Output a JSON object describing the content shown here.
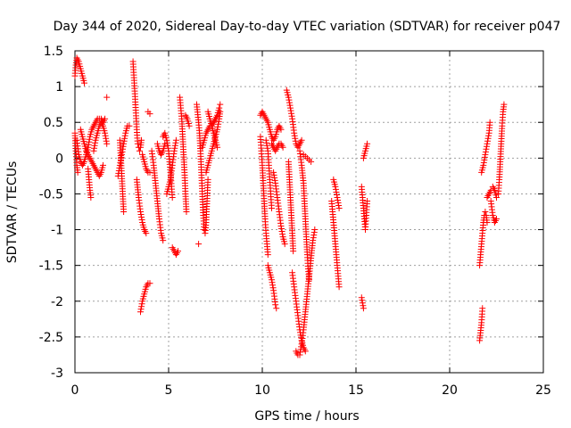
{
  "chart_data": {
    "type": "scatter",
    "title": "Day 344 of 2020, Sidereal Day-to-day VTEC variation (SDTVAR) for receiver p047",
    "xlabel": "GPS time / hours",
    "ylabel": "SDTVAR / TECUs",
    "xlim": [
      0,
      25
    ],
    "ylim": [
      -3,
      1.5
    ],
    "x_ticks": [
      0,
      5,
      10,
      15,
      20,
      25
    ],
    "x_tick_labels": [
      "0",
      "5",
      "10",
      "15",
      "20",
      "25"
    ],
    "y_ticks": [
      1.5,
      1,
      0.5,
      0,
      -0.5,
      -1,
      -1.5,
      -2,
      -2.5,
      -3
    ],
    "y_tick_labels": [
      "1.5",
      "1",
      "0.5",
      "0",
      "-0.5",
      "-1",
      "-1.5",
      "-2",
      "-2.5",
      "-3"
    ],
    "grid": true,
    "marker": "+",
    "marker_color": "#ff0000",
    "segments": [
      [
        [
          0.0,
          1.15
        ],
        [
          0.05,
          1.3
        ],
        [
          0.1,
          1.4
        ],
        [
          0.2,
          1.35
        ],
        [
          0.3,
          1.25
        ],
        [
          0.4,
          1.15
        ],
        [
          0.5,
          1.05
        ]
      ],
      [
        [
          0.0,
          0.35
        ],
        [
          0.05,
          0.1
        ],
        [
          0.1,
          -0.1
        ],
        [
          0.15,
          -0.2
        ]
      ],
      [
        [
          0.1,
          0.25
        ],
        [
          0.2,
          0.05
        ],
        [
          0.3,
          -0.05
        ],
        [
          0.4,
          -0.1
        ],
        [
          0.5,
          -0.05
        ],
        [
          0.6,
          0.05
        ],
        [
          0.7,
          0.15
        ],
        [
          0.8,
          0.3
        ],
        [
          0.9,
          0.4
        ],
        [
          1.0,
          0.45
        ],
        [
          1.1,
          0.5
        ],
        [
          1.2,
          0.55
        ],
        [
          1.3,
          0.55
        ],
        [
          1.4,
          0.55
        ],
        [
          1.5,
          0.5
        ],
        [
          1.6,
          0.55
        ]
      ],
      [
        [
          0.3,
          0.4
        ],
        [
          0.4,
          0.3
        ],
        [
          0.5,
          0.2
        ],
        [
          0.6,
          0.1
        ],
        [
          0.7,
          0.05
        ],
        [
          0.8,
          0.0
        ],
        [
          0.9,
          -0.05
        ],
        [
          1.0,
          -0.1
        ],
        [
          1.1,
          -0.15
        ],
        [
          1.2,
          -0.2
        ],
        [
          1.3,
          -0.25
        ],
        [
          1.4,
          -0.2
        ],
        [
          1.5,
          -0.1
        ]
      ],
      [
        [
          0.7,
          -0.15
        ],
        [
          0.75,
          -0.3
        ],
        [
          0.8,
          -0.45
        ],
        [
          0.85,
          -0.55
        ]
      ],
      [
        [
          1.0,
          0.1
        ],
        [
          1.1,
          0.25
        ],
        [
          1.2,
          0.35
        ],
        [
          1.3,
          0.45
        ],
        [
          1.4,
          0.5
        ],
        [
          1.5,
          0.45
        ],
        [
          1.6,
          0.35
        ],
        [
          1.7,
          0.2
        ]
      ],
      [
        [
          1.7,
          0.85
        ]
      ],
      [
        [
          2.3,
          -0.25
        ],
        [
          2.4,
          -0.1
        ],
        [
          2.5,
          0.05
        ],
        [
          2.6,
          0.2
        ],
        [
          2.7,
          0.35
        ],
        [
          2.8,
          0.45
        ],
        [
          2.9,
          0.45
        ]
      ],
      [
        [
          2.4,
          0.25
        ],
        [
          2.45,
          0.0
        ],
        [
          2.5,
          -0.25
        ],
        [
          2.55,
          -0.5
        ],
        [
          2.6,
          -0.75
        ]
      ],
      [
        [
          3.1,
          1.35
        ],
        [
          3.2,
          0.9
        ],
        [
          3.3,
          0.4
        ],
        [
          3.35,
          0.2
        ],
        [
          3.4,
          0.15
        ],
        [
          3.45,
          0.1
        ],
        [
          3.5,
          0.15
        ],
        [
          3.55,
          0.25
        ]
      ],
      [
        [
          3.3,
          -0.3
        ],
        [
          3.4,
          -0.55
        ],
        [
          3.5,
          -0.75
        ],
        [
          3.6,
          -0.9
        ],
        [
          3.7,
          -1.0
        ],
        [
          3.8,
          -1.05
        ]
      ],
      [
        [
          3.5,
          -2.15
        ],
        [
          3.6,
          -2.0
        ],
        [
          3.7,
          -1.9
        ],
        [
          3.8,
          -1.8
        ],
        [
          3.9,
          -1.75
        ],
        [
          4.0,
          -1.75
        ]
      ],
      [
        [
          3.6,
          0.05
        ],
        [
          3.7,
          -0.05
        ],
        [
          3.8,
          -0.15
        ],
        [
          3.9,
          -0.2
        ],
        [
          4.0,
          -0.2
        ]
      ],
      [
        [
          3.9,
          0.65
        ],
        [
          4.0,
          0.62
        ]
      ],
      [
        [
          4.1,
          0.1
        ],
        [
          4.2,
          -0.1
        ],
        [
          4.3,
          -0.35
        ],
        [
          4.4,
          -0.6
        ],
        [
          4.5,
          -0.85
        ],
        [
          4.6,
          -1.05
        ],
        [
          4.7,
          -1.15
        ]
      ],
      [
        [
          4.4,
          0.2
        ],
        [
          4.5,
          0.1
        ],
        [
          4.6,
          0.05
        ],
        [
          4.7,
          0.1
        ],
        [
          4.8,
          0.2
        ]
      ],
      [
        [
          4.7,
          0.3
        ],
        [
          4.8,
          0.35
        ],
        [
          4.9,
          0.25
        ],
        [
          5.0,
          0.1
        ],
        [
          5.1,
          -0.2
        ],
        [
          5.2,
          -0.55
        ]
      ],
      [
        [
          4.9,
          -0.5
        ],
        [
          5.0,
          -0.4
        ],
        [
          5.1,
          -0.3
        ],
        [
          5.2,
          -0.1
        ],
        [
          5.3,
          0.1
        ],
        [
          5.4,
          0.25
        ]
      ],
      [
        [
          5.2,
          -1.25
        ],
        [
          5.3,
          -1.3
        ],
        [
          5.4,
          -1.35
        ],
        [
          5.5,
          -1.3
        ]
      ],
      [
        [
          5.6,
          0.85
        ],
        [
          5.65,
          0.7
        ],
        [
          5.7,
          0.55
        ],
        [
          5.75,
          0.3
        ],
        [
          5.8,
          0.05
        ],
        [
          5.85,
          -0.2
        ],
        [
          5.9,
          -0.5
        ],
        [
          5.95,
          -0.75
        ]
      ],
      [
        [
          5.9,
          0.6
        ],
        [
          6.0,
          0.55
        ],
        [
          6.1,
          0.45
        ]
      ],
      [
        [
          6.5,
          0.75
        ],
        [
          6.6,
          0.5
        ],
        [
          6.65,
          0.35
        ],
        [
          6.7,
          0.1
        ],
        [
          6.75,
          -0.2
        ],
        [
          6.8,
          -0.5
        ],
        [
          6.85,
          -0.8
        ],
        [
          6.9,
          -1.0
        ],
        [
          6.95,
          -1.05
        ],
        [
          7.0,
          -0.9
        ],
        [
          7.05,
          -0.6
        ],
        [
          7.1,
          -0.3
        ]
      ],
      [
        [
          6.6,
          -1.2
        ]
      ],
      [
        [
          6.8,
          0.15
        ],
        [
          6.9,
          0.25
        ],
        [
          7.0,
          0.35
        ],
        [
          7.1,
          0.4
        ],
        [
          7.2,
          0.45
        ],
        [
          7.3,
          0.45
        ],
        [
          7.4,
          0.5
        ],
        [
          7.5,
          0.55
        ],
        [
          7.6,
          0.6
        ],
        [
          7.7,
          0.7
        ],
        [
          7.75,
          0.75
        ]
      ],
      [
        [
          7.1,
          0.65
        ],
        [
          7.2,
          0.55
        ],
        [
          7.3,
          0.45
        ],
        [
          7.4,
          0.35
        ],
        [
          7.5,
          0.25
        ],
        [
          7.6,
          0.15
        ]
      ],
      [
        [
          7.0,
          -0.2
        ],
        [
          7.1,
          -0.1
        ],
        [
          7.2,
          0.0
        ],
        [
          7.3,
          0.1
        ],
        [
          7.4,
          0.2
        ],
        [
          7.5,
          0.3
        ],
        [
          7.6,
          0.4
        ],
        [
          7.7,
          0.55
        ],
        [
          7.75,
          0.65
        ]
      ],
      [
        [
          9.9,
          0.6
        ],
        [
          10.0,
          0.65
        ],
        [
          10.1,
          0.6
        ],
        [
          10.2,
          0.55
        ],
        [
          10.3,
          0.5
        ],
        [
          10.4,
          0.4
        ],
        [
          10.5,
          0.3
        ],
        [
          10.6,
          0.25
        ],
        [
          10.7,
          0.3
        ],
        [
          10.8,
          0.4
        ],
        [
          10.9,
          0.45
        ],
        [
          11.0,
          0.4
        ]
      ],
      [
        [
          9.9,
          0.3
        ],
        [
          9.95,
          0.1
        ],
        [
          10.0,
          -0.1
        ],
        [
          10.05,
          -0.35
        ],
        [
          10.1,
          -0.6
        ],
        [
          10.15,
          -0.85
        ],
        [
          10.2,
          -1.05
        ],
        [
          10.25,
          -1.2
        ],
        [
          10.3,
          -1.35
        ]
      ],
      [
        [
          10.2,
          0.25
        ],
        [
          10.3,
          0.1
        ],
        [
          10.35,
          -0.1
        ],
        [
          10.4,
          -0.3
        ],
        [
          10.45,
          -0.5
        ],
        [
          10.5,
          -0.7
        ]
      ],
      [
        [
          10.3,
          -1.5
        ],
        [
          10.4,
          -1.6
        ],
        [
          10.5,
          -1.7
        ],
        [
          10.6,
          -1.85
        ],
        [
          10.7,
          -2.05
        ],
        [
          10.75,
          -2.1
        ]
      ],
      [
        [
          10.5,
          0.2
        ],
        [
          10.6,
          0.15
        ],
        [
          10.7,
          0.1
        ],
        [
          10.8,
          0.15
        ],
        [
          10.9,
          0.2
        ],
        [
          11.0,
          0.2
        ],
        [
          11.1,
          0.15
        ]
      ],
      [
        [
          10.6,
          -0.2
        ],
        [
          10.7,
          -0.35
        ],
        [
          10.8,
          -0.55
        ],
        [
          10.9,
          -0.75
        ],
        [
          11.0,
          -0.95
        ],
        [
          11.1,
          -1.1
        ],
        [
          11.2,
          -1.2
        ]
      ],
      [
        [
          11.3,
          0.95
        ],
        [
          11.4,
          0.85
        ],
        [
          11.5,
          0.7
        ],
        [
          11.6,
          0.55
        ],
        [
          11.7,
          0.35
        ],
        [
          11.8,
          0.2
        ],
        [
          11.9,
          0.15
        ],
        [
          12.0,
          0.2
        ],
        [
          12.1,
          0.25
        ]
      ],
      [
        [
          11.4,
          -0.05
        ],
        [
          11.45,
          -0.3
        ],
        [
          11.5,
          -0.55
        ],
        [
          11.55,
          -0.8
        ],
        [
          11.6,
          -1.05
        ],
        [
          11.65,
          -1.3
        ]
      ],
      [
        [
          11.6,
          -1.6
        ],
        [
          11.7,
          -1.8
        ],
        [
          11.8,
          -2.0
        ],
        [
          11.9,
          -2.2
        ],
        [
          12.0,
          -2.4
        ],
        [
          12.1,
          -2.55
        ],
        [
          12.2,
          -2.65
        ],
        [
          12.3,
          -2.7
        ]
      ],
      [
        [
          11.8,
          -2.7
        ],
        [
          11.9,
          -2.75
        ],
        [
          12.0,
          -2.75
        ],
        [
          12.1,
          -2.6
        ],
        [
          12.2,
          -2.4
        ],
        [
          12.3,
          -2.15
        ],
        [
          12.4,
          -1.9
        ],
        [
          12.5,
          -1.65
        ],
        [
          12.6,
          -1.4
        ],
        [
          12.7,
          -1.15
        ],
        [
          12.8,
          -1.0
        ]
      ],
      [
        [
          12.0,
          0.1
        ],
        [
          12.1,
          -0.1
        ],
        [
          12.2,
          -0.35
        ],
        [
          12.25,
          -0.6
        ],
        [
          12.3,
          -0.85
        ],
        [
          12.35,
          -1.1
        ],
        [
          12.4,
          -1.35
        ],
        [
          12.45,
          -1.55
        ],
        [
          12.5,
          -1.7
        ]
      ],
      [
        [
          12.2,
          0.05
        ],
        [
          12.4,
          0.0
        ],
        [
          12.6,
          -0.05
        ]
      ],
      [
        [
          13.7,
          -0.6
        ],
        [
          13.75,
          -0.75
        ],
        [
          13.8,
          -0.9
        ],
        [
          13.85,
          -1.05
        ],
        [
          13.9,
          -1.2
        ],
        [
          13.95,
          -1.35
        ],
        [
          14.0,
          -1.5
        ],
        [
          14.05,
          -1.65
        ],
        [
          14.1,
          -1.8
        ]
      ],
      [
        [
          13.8,
          -0.3
        ],
        [
          13.9,
          -0.4
        ],
        [
          14.0,
          -0.55
        ],
        [
          14.1,
          -0.7
        ]
      ],
      [
        [
          15.3,
          -1.95
        ],
        [
          15.4,
          -2.1
        ]
      ],
      [
        [
          15.3,
          -0.4
        ],
        [
          15.35,
          -0.55
        ],
        [
          15.4,
          -0.7
        ],
        [
          15.45,
          -0.85
        ],
        [
          15.5,
          -1.0
        ],
        [
          15.55,
          -0.8
        ],
        [
          15.6,
          -0.6
        ]
      ],
      [
        [
          15.4,
          0.0
        ],
        [
          15.5,
          0.1
        ],
        [
          15.6,
          0.2
        ]
      ],
      [
        [
          21.6,
          -1.5
        ],
        [
          21.65,
          -1.35
        ],
        [
          21.7,
          -1.2
        ],
        [
          21.75,
          -1.05
        ],
        [
          21.8,
          -0.9
        ],
        [
          21.85,
          -0.8
        ],
        [
          21.9,
          -0.75
        ],
        [
          21.95,
          -0.8
        ],
        [
          22.0,
          -0.9
        ]
      ],
      [
        [
          21.6,
          -2.55
        ],
        [
          21.7,
          -2.3
        ],
        [
          21.75,
          -2.1
        ]
      ],
      [
        [
          21.7,
          -0.2
        ],
        [
          21.8,
          -0.1
        ],
        [
          21.9,
          0.05
        ],
        [
          22.0,
          0.2
        ],
        [
          22.1,
          0.35
        ],
        [
          22.15,
          0.5
        ]
      ],
      [
        [
          22.0,
          -0.55
        ],
        [
          22.1,
          -0.5
        ],
        [
          22.2,
          -0.45
        ]
      ],
      [
        [
          22.2,
          -0.6
        ],
        [
          22.3,
          -0.8
        ],
        [
          22.4,
          -0.9
        ],
        [
          22.5,
          -0.85
        ]
      ],
      [
        [
          22.3,
          -0.4
        ],
        [
          22.4,
          -0.45
        ],
        [
          22.5,
          -0.55
        ]
      ],
      [
        [
          22.6,
          -0.5
        ],
        [
          22.65,
          -0.3
        ],
        [
          22.7,
          -0.05
        ],
        [
          22.75,
          0.2
        ],
        [
          22.8,
          0.45
        ],
        [
          22.85,
          0.65
        ],
        [
          22.9,
          0.75
        ]
      ]
    ]
  }
}
